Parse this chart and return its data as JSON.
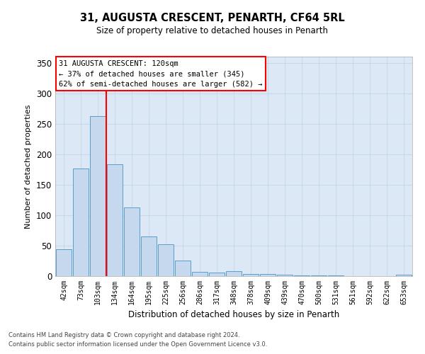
{
  "title1": "31, AUGUSTA CRESCENT, PENARTH, CF64 5RL",
  "title2": "Size of property relative to detached houses in Penarth",
  "xlabel": "Distribution of detached houses by size in Penarth",
  "ylabel": "Number of detached properties",
  "categories": [
    "42sqm",
    "73sqm",
    "103sqm",
    "134sqm",
    "164sqm",
    "195sqm",
    "225sqm",
    "256sqm",
    "286sqm",
    "317sqm",
    "348sqm",
    "378sqm",
    "409sqm",
    "439sqm",
    "470sqm",
    "500sqm",
    "531sqm",
    "561sqm",
    "592sqm",
    "622sqm",
    "653sqm"
  ],
  "values": [
    44,
    176,
    263,
    183,
    113,
    65,
    52,
    25,
    7,
    6,
    8,
    4,
    3,
    2,
    1,
    1,
    1,
    0,
    0,
    0,
    2
  ],
  "bar_color": "#c5d8ed",
  "bar_edge_color": "#5a9fc8",
  "red_line_index": 2,
  "annotation_text": "31 AUGUSTA CRESCENT: 120sqm\n← 37% of detached houses are smaller (345)\n62% of semi-detached houses are larger (582) →",
  "annotation_box_color": "white",
  "annotation_box_edge_color": "red",
  "red_line_color": "red",
  "grid_color": "#c8d8e8",
  "bg_color": "#dce8f5",
  "footer1": "Contains HM Land Registry data © Crown copyright and database right 2024.",
  "footer2": "Contains public sector information licensed under the Open Government Licence v3.0.",
  "ylim": [
    0,
    360
  ],
  "yticks": [
    0,
    50,
    100,
    150,
    200,
    250,
    300,
    350
  ]
}
